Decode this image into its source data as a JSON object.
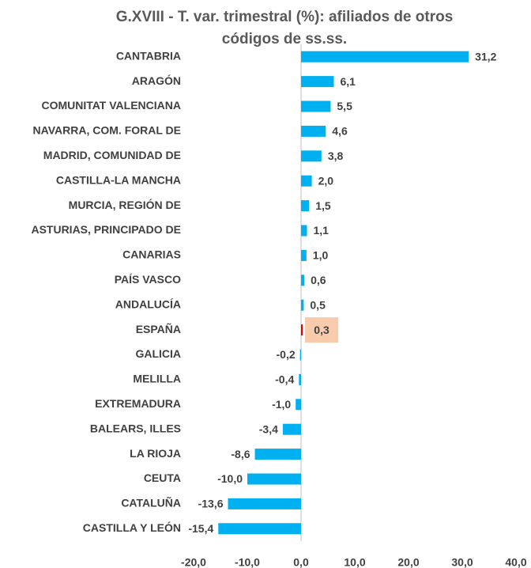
{
  "chart_data": {
    "type": "barh",
    "title": "G.XVIII - T. var. trimestral (%): afiliados de otros códigos de ss.ss.",
    "categories": [
      "CANTABRIA",
      "ARAGÓN",
      "COMUNITAT VALENCIANA",
      "NAVARRA, COM. FORAL DE",
      "MADRID, COMUNIDAD DE",
      "CASTILLA-LA MANCHA",
      "MURCIA, REGIÓN DE",
      "ASTURIAS, PRINCIPADO DE",
      "CANARIAS",
      "PAÍS VASCO",
      "ANDALUCÍA",
      "ESPAÑA",
      "GALICIA",
      "MELILLA",
      "EXTREMADURA",
      "BALEARS, ILLES",
      "LA RIOJA",
      "CEUTA",
      "CATALUÑA",
      "CASTILLA Y LEÓN"
    ],
    "values": [
      31.2,
      6.1,
      5.5,
      4.6,
      3.8,
      2.0,
      1.5,
      1.1,
      1.0,
      0.6,
      0.5,
      0.3,
      -0.2,
      -0.4,
      -1.0,
      -3.4,
      -8.6,
      -10.0,
      -13.6,
      -15.4
    ],
    "value_labels": [
      "31,2",
      "6,1",
      "5,5",
      "4,6",
      "3,8",
      "2,0",
      "1,5",
      "1,1",
      "1,0",
      "0,6",
      "0,5",
      "0,3",
      "-0,2",
      "-0,4",
      "-1,0",
      "-3,4",
      "-8,6",
      "-10,0",
      "-13,6",
      "-15,4"
    ],
    "color": "#00b0f0",
    "highlight": {
      "index": 11,
      "bar_color": "#e00000",
      "label_background": "#f8cbad"
    },
    "xlim": [
      -20,
      40
    ],
    "xticks": [
      {
        "value": -20,
        "label": "-20,0"
      },
      {
        "value": -10,
        "label": "-10,0"
      },
      {
        "value": 0,
        "label": "0,0"
      },
      {
        "value": 10,
        "label": "10,0"
      },
      {
        "value": 20,
        "label": "20,0"
      },
      {
        "value": 30,
        "label": "30,0"
      },
      {
        "value": 40,
        "label": "40,0"
      }
    ],
    "grid": false
  }
}
